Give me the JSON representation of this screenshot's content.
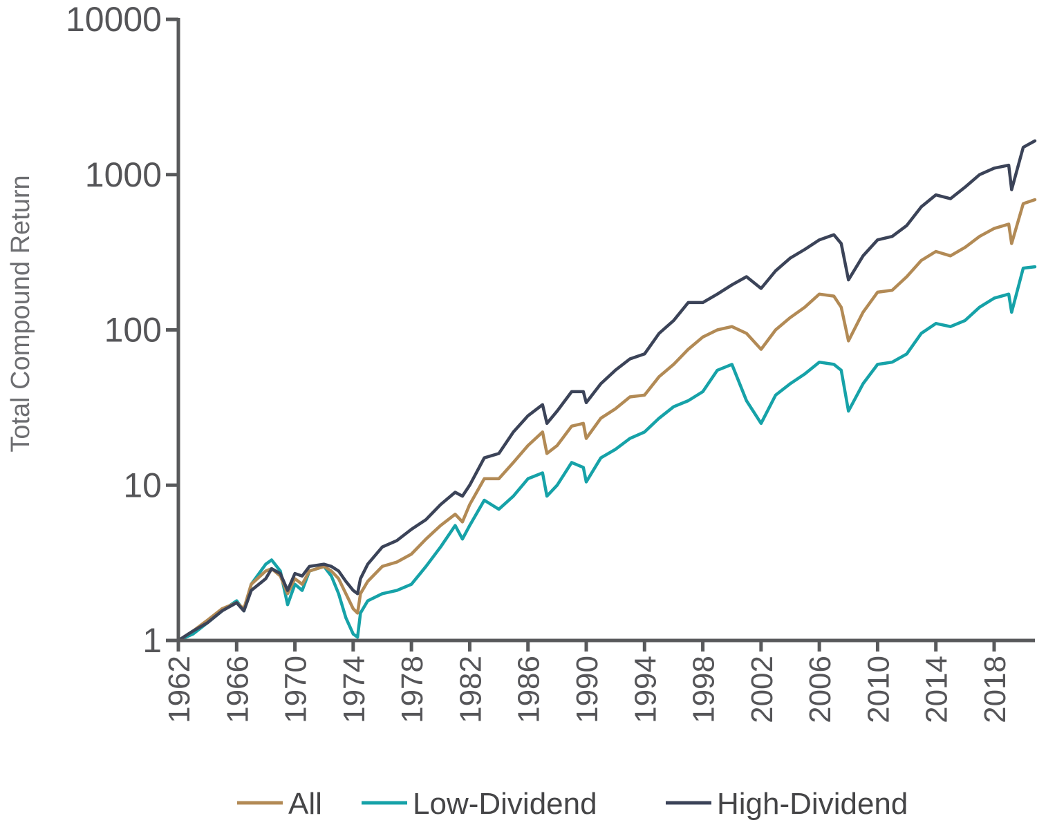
{
  "chart_data": {
    "type": "line",
    "title": "",
    "xlabel": "",
    "ylabel": "Total Compound Return",
    "y_scale": "log",
    "ylim": [
      1,
      10000
    ],
    "xlim": [
      1962,
      2020.8
    ],
    "y_ticks": [
      "1",
      "10",
      "100",
      "1000",
      "10000"
    ],
    "x_ticks": [
      "1962",
      "1966",
      "1970",
      "1974",
      "1978",
      "1982",
      "1986",
      "1990",
      "1994",
      "1998",
      "2002",
      "2006",
      "2010",
      "2014",
      "2018"
    ],
    "grid": false,
    "legend_position": "bottom",
    "axis_color": "#58595b",
    "series": [
      {
        "name": "All",
        "color": "#b28a55",
        "points": [
          [
            1962.0,
            1.0
          ],
          [
            1963.0,
            1.15
          ],
          [
            1964.0,
            1.35
          ],
          [
            1965.0,
            1.6
          ],
          [
            1966.0,
            1.75
          ],
          [
            1966.5,
            1.6
          ],
          [
            1967.0,
            2.3
          ],
          [
            1968.0,
            2.8
          ],
          [
            1968.4,
            2.9
          ],
          [
            1969.0,
            2.6
          ],
          [
            1969.5,
            2.0
          ],
          [
            1970.0,
            2.5
          ],
          [
            1970.5,
            2.3
          ],
          [
            1971.0,
            2.8
          ],
          [
            1972.0,
            3.0
          ],
          [
            1972.5,
            2.8
          ],
          [
            1973.0,
            2.5
          ],
          [
            1973.5,
            2.0
          ],
          [
            1974.0,
            1.6
          ],
          [
            1974.3,
            1.5
          ],
          [
            1974.5,
            2.0
          ],
          [
            1975.0,
            2.4
          ],
          [
            1976.0,
            3.0
          ],
          [
            1977.0,
            3.2
          ],
          [
            1978.0,
            3.6
          ],
          [
            1979.0,
            4.5
          ],
          [
            1980.0,
            5.5
          ],
          [
            1981.0,
            6.5
          ],
          [
            1981.5,
            5.8
          ],
          [
            1982.0,
            7.5
          ],
          [
            1983.0,
            11.0
          ],
          [
            1984.0,
            11.0
          ],
          [
            1985.0,
            14.0
          ],
          [
            1986.0,
            18.0
          ],
          [
            1987.0,
            22.0
          ],
          [
            1987.3,
            16.0
          ],
          [
            1988.0,
            18.0
          ],
          [
            1989.0,
            24.0
          ],
          [
            1989.8,
            25.0
          ],
          [
            1990.0,
            20.0
          ],
          [
            1991.0,
            27.0
          ],
          [
            1992.0,
            31.0
          ],
          [
            1993.0,
            37.0
          ],
          [
            1994.0,
            38.0
          ],
          [
            1995.0,
            50.0
          ],
          [
            1996.0,
            60.0
          ],
          [
            1997.0,
            75.0
          ],
          [
            1998.0,
            90.0
          ],
          [
            1999.0,
            100.0
          ],
          [
            2000.0,
            105.0
          ],
          [
            2001.0,
            95.0
          ],
          [
            2002.0,
            75.0
          ],
          [
            2003.0,
            100.0
          ],
          [
            2004.0,
            120.0
          ],
          [
            2005.0,
            140.0
          ],
          [
            2006.0,
            170.0
          ],
          [
            2007.0,
            165.0
          ],
          [
            2007.5,
            140.0
          ],
          [
            2008.0,
            85.0
          ],
          [
            2009.0,
            130.0
          ],
          [
            2010.0,
            175.0
          ],
          [
            2011.0,
            180.0
          ],
          [
            2012.0,
            220.0
          ],
          [
            2013.0,
            280.0
          ],
          [
            2014.0,
            320.0
          ],
          [
            2015.0,
            300.0
          ],
          [
            2016.0,
            340.0
          ],
          [
            2017.0,
            400.0
          ],
          [
            2018.0,
            450.0
          ],
          [
            2019.0,
            480.0
          ],
          [
            2019.2,
            360.0
          ],
          [
            2020.0,
            650.0
          ],
          [
            2020.8,
            690.0
          ]
        ]
      },
      {
        "name": "Low-Dividend",
        "color": "#16a2a8",
        "points": [
          [
            1962.0,
            1.0
          ],
          [
            1963.0,
            1.1
          ],
          [
            1964.0,
            1.3
          ],
          [
            1965.0,
            1.55
          ],
          [
            1966.0,
            1.8
          ],
          [
            1966.5,
            1.55
          ],
          [
            1967.0,
            2.3
          ],
          [
            1968.0,
            3.1
          ],
          [
            1968.4,
            3.3
          ],
          [
            1969.0,
            2.8
          ],
          [
            1969.5,
            1.7
          ],
          [
            1970.0,
            2.3
          ],
          [
            1970.5,
            2.1
          ],
          [
            1971.0,
            2.8
          ],
          [
            1972.0,
            3.0
          ],
          [
            1972.5,
            2.6
          ],
          [
            1973.0,
            2.0
          ],
          [
            1973.5,
            1.4
          ],
          [
            1974.0,
            1.1
          ],
          [
            1974.3,
            1.05
          ],
          [
            1974.5,
            1.5
          ],
          [
            1975.0,
            1.8
          ],
          [
            1976.0,
            2.0
          ],
          [
            1977.0,
            2.1
          ],
          [
            1978.0,
            2.3
          ],
          [
            1979.0,
            3.0
          ],
          [
            1980.0,
            4.0
          ],
          [
            1981.0,
            5.5
          ],
          [
            1981.5,
            4.5
          ],
          [
            1982.0,
            5.5
          ],
          [
            1983.0,
            8.0
          ],
          [
            1984.0,
            7.0
          ],
          [
            1985.0,
            8.5
          ],
          [
            1986.0,
            11.0
          ],
          [
            1987.0,
            12.0
          ],
          [
            1987.3,
            8.5
          ],
          [
            1988.0,
            10.0
          ],
          [
            1989.0,
            14.0
          ],
          [
            1989.8,
            13.0
          ],
          [
            1990.0,
            10.5
          ],
          [
            1991.0,
            15.0
          ],
          [
            1992.0,
            17.0
          ],
          [
            1993.0,
            20.0
          ],
          [
            1994.0,
            22.0
          ],
          [
            1995.0,
            27.0
          ],
          [
            1996.0,
            32.0
          ],
          [
            1997.0,
            35.0
          ],
          [
            1998.0,
            40.0
          ],
          [
            1999.0,
            55.0
          ],
          [
            2000.0,
            60.0
          ],
          [
            2001.0,
            35.0
          ],
          [
            2002.0,
            25.0
          ],
          [
            2003.0,
            38.0
          ],
          [
            2004.0,
            45.0
          ],
          [
            2005.0,
            52.0
          ],
          [
            2006.0,
            62.0
          ],
          [
            2007.0,
            60.0
          ],
          [
            2007.5,
            55.0
          ],
          [
            2008.0,
            30.0
          ],
          [
            2009.0,
            45.0
          ],
          [
            2010.0,
            60.0
          ],
          [
            2011.0,
            62.0
          ],
          [
            2012.0,
            70.0
          ],
          [
            2013.0,
            95.0
          ],
          [
            2014.0,
            110.0
          ],
          [
            2015.0,
            105.0
          ],
          [
            2016.0,
            115.0
          ],
          [
            2017.0,
            140.0
          ],
          [
            2018.0,
            160.0
          ],
          [
            2019.0,
            170.0
          ],
          [
            2019.2,
            130.0
          ],
          [
            2020.0,
            250.0
          ],
          [
            2020.8,
            255.0
          ]
        ]
      },
      {
        "name": "High-Dividend",
        "color": "#3b4358",
        "points": [
          [
            1962.0,
            1.0
          ],
          [
            1963.0,
            1.15
          ],
          [
            1964.0,
            1.3
          ],
          [
            1965.0,
            1.55
          ],
          [
            1966.0,
            1.75
          ],
          [
            1966.5,
            1.55
          ],
          [
            1967.0,
            2.1
          ],
          [
            1968.0,
            2.5
          ],
          [
            1968.4,
            2.9
          ],
          [
            1969.0,
            2.7
          ],
          [
            1969.5,
            2.1
          ],
          [
            1970.0,
            2.7
          ],
          [
            1970.5,
            2.6
          ],
          [
            1971.0,
            3.0
          ],
          [
            1972.0,
            3.1
          ],
          [
            1972.5,
            3.0
          ],
          [
            1973.0,
            2.8
          ],
          [
            1973.5,
            2.4
          ],
          [
            1974.0,
            2.1
          ],
          [
            1974.3,
            2.0
          ],
          [
            1974.5,
            2.5
          ],
          [
            1975.0,
            3.1
          ],
          [
            1976.0,
            4.0
          ],
          [
            1977.0,
            4.4
          ],
          [
            1978.0,
            5.2
          ],
          [
            1979.0,
            6.0
          ],
          [
            1980.0,
            7.5
          ],
          [
            1981.0,
            9.0
          ],
          [
            1981.5,
            8.5
          ],
          [
            1982.0,
            10.0
          ],
          [
            1983.0,
            15.0
          ],
          [
            1984.0,
            16.0
          ],
          [
            1985.0,
            22.0
          ],
          [
            1986.0,
            28.0
          ],
          [
            1987.0,
            33.0
          ],
          [
            1987.3,
            25.0
          ],
          [
            1988.0,
            30.0
          ],
          [
            1989.0,
            40.0
          ],
          [
            1989.8,
            40.0
          ],
          [
            1990.0,
            34.0
          ],
          [
            1991.0,
            45.0
          ],
          [
            1992.0,
            55.0
          ],
          [
            1993.0,
            65.0
          ],
          [
            1994.0,
            70.0
          ],
          [
            1995.0,
            95.0
          ],
          [
            1996.0,
            115.0
          ],
          [
            1997.0,
            150.0
          ],
          [
            1998.0,
            150.0
          ],
          [
            1999.0,
            170.0
          ],
          [
            2000.0,
            195.0
          ],
          [
            2001.0,
            220.0
          ],
          [
            2002.0,
            185.0
          ],
          [
            2003.0,
            240.0
          ],
          [
            2004.0,
            290.0
          ],
          [
            2005.0,
            330.0
          ],
          [
            2006.0,
            380.0
          ],
          [
            2007.0,
            410.0
          ],
          [
            2007.5,
            360.0
          ],
          [
            2008.0,
            210.0
          ],
          [
            2009.0,
            300.0
          ],
          [
            2010.0,
            380.0
          ],
          [
            2011.0,
            400.0
          ],
          [
            2012.0,
            470.0
          ],
          [
            2013.0,
            620.0
          ],
          [
            2014.0,
            740.0
          ],
          [
            2015.0,
            700.0
          ],
          [
            2016.0,
            830.0
          ],
          [
            2017.0,
            1000.0
          ],
          [
            2018.0,
            1100.0
          ],
          [
            2019.0,
            1150.0
          ],
          [
            2019.2,
            800.0
          ],
          [
            2020.0,
            1500.0
          ],
          [
            2020.8,
            1650.0
          ]
        ]
      }
    ]
  }
}
